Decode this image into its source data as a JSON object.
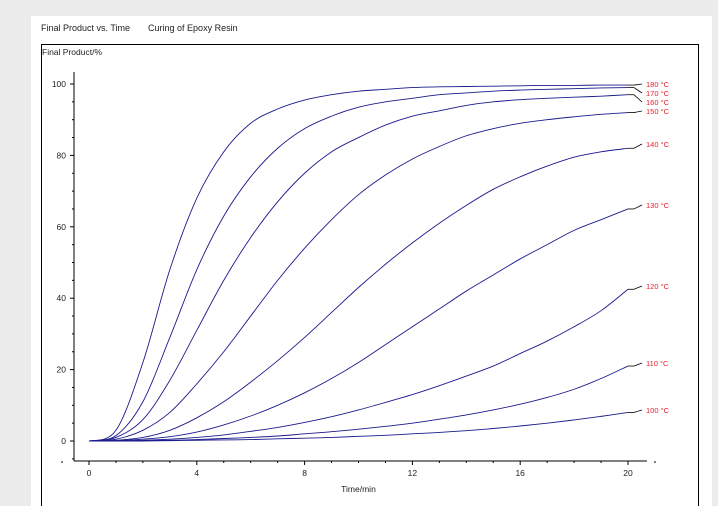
{
  "header": {
    "title": "Final Product vs. Time",
    "subtitle": "Curing of Epoxy Resin"
  },
  "colors": {
    "curve": "#1a1a8c",
    "label": "#e8202a",
    "axis": "#000000"
  },
  "chart_data": {
    "type": "line",
    "title": "Final Product vs. Time",
    "subtitle": "Curing of Epoxy Resin",
    "xlabel": "Time/min",
    "ylabel": "Final Product/%",
    "xlim": [
      0,
      20
    ],
    "ylim": [
      0,
      100
    ],
    "xticks": [
      0,
      4,
      8,
      12,
      16,
      20
    ],
    "yticks": [
      0,
      20,
      40,
      60,
      80,
      100
    ],
    "grid": false,
    "x": [
      0,
      1,
      2,
      3,
      4,
      5,
      6,
      7,
      8,
      9,
      10,
      11,
      12,
      13,
      14,
      15,
      16,
      17,
      18,
      19,
      20
    ],
    "series": [
      {
        "name": "180 °C",
        "values": [
          0,
          3,
          22,
          48,
          68,
          81,
          89,
          93,
          95.5,
          97,
          98,
          98.5,
          99,
          99.2,
          99.3,
          99.4,
          99.5,
          99.6,
          99.6,
          99.7,
          99.7
        ]
      },
      {
        "name": "170 °C",
        "values": [
          0,
          1.5,
          11,
          29,
          48,
          63,
          74,
          82,
          87.5,
          91,
          93.5,
          95,
          96,
          97,
          97.5,
          98,
          98.3,
          98.5,
          98.7,
          98.9,
          99
        ]
      },
      {
        "name": "160 °C",
        "values": [
          0,
          1,
          6,
          17,
          31,
          45,
          57,
          67,
          75,
          81,
          85,
          88.5,
          91,
          92.5,
          94,
          95,
          95.6,
          96,
          96.3,
          96.6,
          97
        ]
      },
      {
        "name": "150 °C",
        "values": [
          0,
          0.5,
          3,
          8,
          16,
          25,
          35,
          45,
          54,
          62,
          69,
          74.5,
          79,
          82.5,
          85.5,
          87.5,
          89,
          90,
          90.8,
          91.5,
          92
        ]
      },
      {
        "name": "140 °C",
        "values": [
          0,
          0.2,
          1,
          3,
          6.5,
          11,
          16.5,
          22.5,
          29,
          36,
          43,
          49.5,
          55.5,
          61,
          66,
          70.5,
          74,
          77,
          79.5,
          81,
          82
        ]
      },
      {
        "name": "130 °C",
        "values": [
          0,
          0.1,
          0.5,
          1.2,
          2.5,
          4.5,
          7,
          10,
          13.5,
          17.5,
          22,
          27,
          32,
          37,
          42,
          46.5,
          51,
          55,
          59,
          62,
          65
        ]
      },
      {
        "name": "120 °C",
        "values": [
          0,
          0,
          0.2,
          0.5,
          1,
          1.7,
          2.7,
          3.8,
          5.2,
          6.8,
          8.7,
          10.8,
          13,
          15.5,
          18.2,
          21,
          24.5,
          28,
          32,
          36.5,
          42.5
        ]
      },
      {
        "name": "110 °C",
        "values": [
          0,
          0,
          0.1,
          0.2,
          0.4,
          0.7,
          1,
          1.4,
          2,
          2.6,
          3.3,
          4.1,
          5,
          6.1,
          7.3,
          8.7,
          10.3,
          12.2,
          14.5,
          17.5,
          21
        ]
      },
      {
        "name": "100 °C",
        "values": [
          0,
          0,
          0,
          0.1,
          0.2,
          0.3,
          0.4,
          0.6,
          0.8,
          1.0,
          1.3,
          1.6,
          2,
          2.4,
          2.9,
          3.5,
          4.2,
          5,
          5.9,
          6.9,
          8
        ]
      }
    ]
  }
}
